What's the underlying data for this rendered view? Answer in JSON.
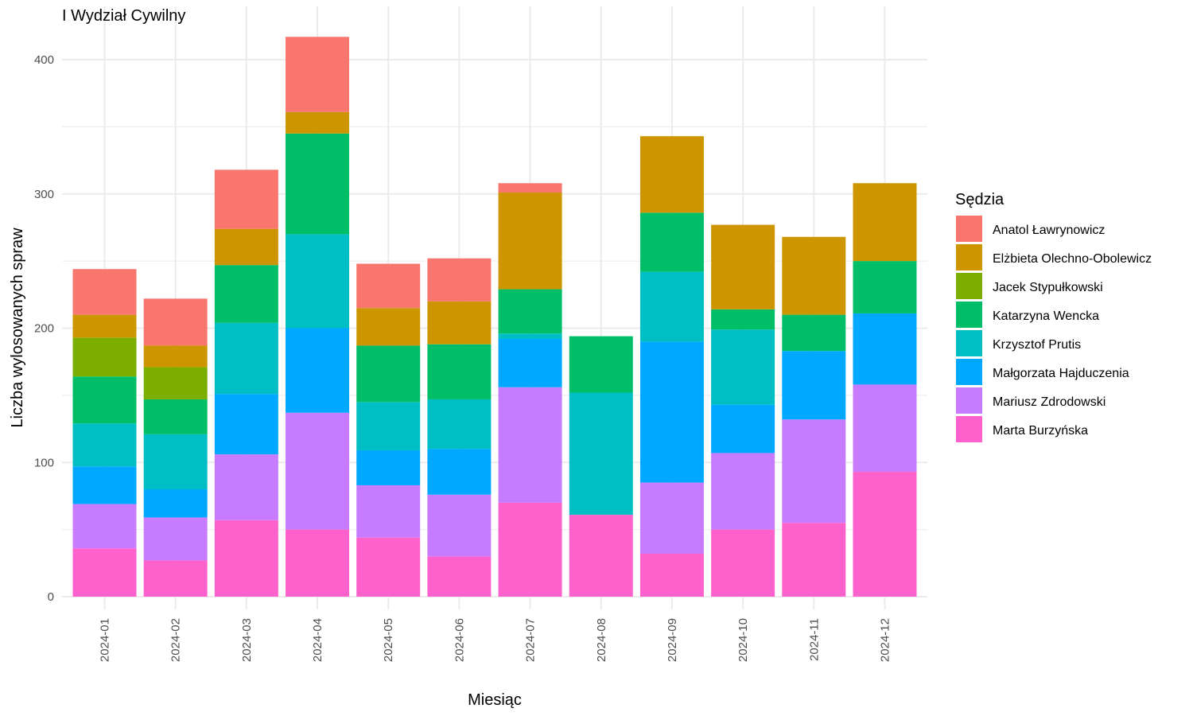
{
  "chart_data": {
    "type": "bar",
    "stacked": true,
    "title": "I Wydział Cywilny",
    "xlabel": "Miesiąc",
    "ylabel": "Liczba wylosowanych spraw",
    "ylim": [
      0,
      430
    ],
    "yticks": [
      0,
      100,
      200,
      300,
      400
    ],
    "grid": true,
    "legend": {
      "title": "Sędzia",
      "position": "right"
    },
    "categories": [
      "2024-01",
      "2024-02",
      "2024-03",
      "2024-04",
      "2024-05",
      "2024-06",
      "2024-07",
      "2024-08",
      "2024-09",
      "2024-10",
      "2024-11",
      "2024-12"
    ],
    "series": [
      {
        "name": "Marta Burzyńska",
        "color": "#FF61CC",
        "values": [
          36,
          27,
          57,
          50,
          44,
          30,
          70,
          61,
          32,
          50,
          55,
          93
        ]
      },
      {
        "name": "Mariusz Zdrodowski",
        "color": "#C77CFF",
        "values": [
          33,
          32,
          49,
          87,
          39,
          46,
          86,
          0,
          53,
          57,
          77,
          65
        ]
      },
      {
        "name": "Małgorzata Hajduczenia",
        "color": "#00A9FF",
        "values": [
          28,
          21,
          45,
          63,
          26,
          34,
          36,
          0,
          105,
          36,
          51,
          53
        ]
      },
      {
        "name": "Krzysztof Prutis",
        "color": "#00BFC4",
        "values": [
          32,
          41,
          53,
          70,
          36,
          37,
          4,
          91,
          52,
          56,
          0,
          0
        ]
      },
      {
        "name": "Katarzyna Wencka",
        "color": "#00BE67",
        "values": [
          35,
          26,
          43,
          75,
          42,
          41,
          33,
          42,
          44,
          15,
          27,
          39
        ]
      },
      {
        "name": "Jacek Stypułkowski",
        "color": "#7CAE00",
        "values": [
          29,
          24,
          0,
          0,
          0,
          0,
          0,
          0,
          0,
          0,
          0,
          0
        ]
      },
      {
        "name": "Elżbieta Olechno-Obolewicz",
        "color": "#CD9600",
        "values": [
          17,
          16,
          27,
          16,
          28,
          32,
          72,
          0,
          57,
          63,
          58,
          58
        ]
      },
      {
        "name": "Anatol Ławrynowicz",
        "color": "#F8766D",
        "values": [
          34,
          35,
          44,
          56,
          33,
          32,
          7,
          0,
          0,
          0,
          0,
          0
        ]
      }
    ]
  }
}
